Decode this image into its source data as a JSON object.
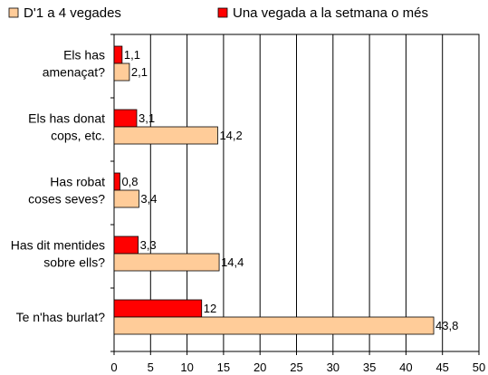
{
  "chart_data": {
    "type": "bar",
    "orientation": "horizontal",
    "categories": [
      [
        "Els has",
        "amenaçat?"
      ],
      [
        "Els has donat",
        "cops, etc."
      ],
      [
        "Has robat",
        "coses seves?"
      ],
      [
        "Has dit mentides",
        "sobre ells?"
      ],
      [
        "Te n'has burlat?"
      ]
    ],
    "series": [
      {
        "name": "Una vegada a la setmana o més",
        "color": "#ff0000",
        "values": [
          1.1,
          3.1,
          0.8,
          3.3,
          12
        ],
        "labels": [
          "1,1",
          "3,1",
          "0,8",
          "3,3",
          "12"
        ]
      },
      {
        "name": "D'1 a 4 vegades",
        "color": "#ffcc99",
        "values": [
          2.1,
          14.2,
          3.4,
          14.4,
          43.8
        ],
        "labels": [
          "2,1",
          "14,2",
          "3,4",
          "14,4",
          "43,8"
        ]
      }
    ],
    "legend": {
      "position": "top",
      "order": [
        "D'1 a 4 vegades",
        "Una vegada a la setmana o més"
      ]
    },
    "xlim": [
      0,
      50
    ],
    "xticks": [
      0,
      5,
      10,
      15,
      20,
      25,
      30,
      35,
      40,
      45,
      50
    ],
    "grid": "vertical",
    "xlabel": "",
    "ylabel": "",
    "title": ""
  }
}
